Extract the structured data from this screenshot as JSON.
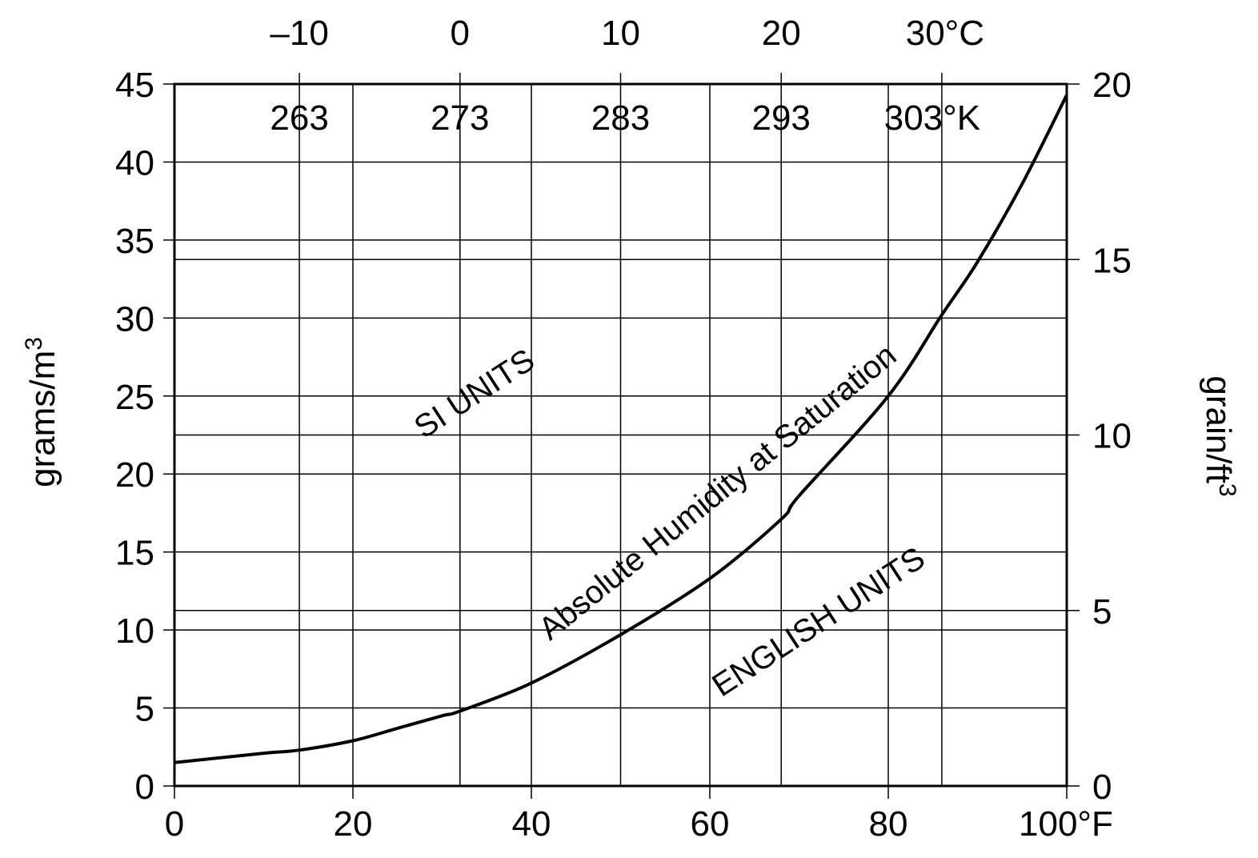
{
  "chart_data": {
    "type": "line",
    "title": "",
    "x_bottom": {
      "unit_label": "°F",
      "range": [
        0,
        100
      ],
      "ticks": [
        0,
        20,
        40,
        60,
        80,
        100
      ],
      "tick_labels": [
        "0",
        "20",
        "40",
        "60",
        "80",
        "100°F"
      ]
    },
    "x_top_celsius": {
      "ticks_f": [
        14,
        32,
        50,
        68,
        86
      ],
      "tick_labels": [
        "–10",
        "0",
        "10",
        "20",
        "30°C"
      ]
    },
    "x_top_kelvin": {
      "ticks_f": [
        14,
        32,
        50,
        68,
        86
      ],
      "tick_labels": [
        "263",
        "273",
        "283",
        "293",
        "303°K"
      ]
    },
    "y_left": {
      "label": "grams/m",
      "label_sup": "3",
      "range": [
        0,
        45
      ],
      "ticks": [
        0,
        5,
        10,
        15,
        20,
        25,
        30,
        35,
        40,
        45
      ],
      "tick_labels": [
        "0",
        "5",
        "10",
        "15",
        "20",
        "25",
        "30",
        "35",
        "40",
        "45"
      ]
    },
    "y_right": {
      "label": "grain/ft",
      "label_sup": "3",
      "range": [
        0,
        20
      ],
      "ticks": [
        0,
        5,
        10,
        15,
        20
      ],
      "tick_labels": [
        "0",
        "5",
        "10",
        "15",
        "20"
      ]
    },
    "series": [
      {
        "x": [
          0,
          10,
          14,
          20,
          25,
          30,
          32,
          40,
          50,
          60,
          68,
          70,
          80,
          86,
          90,
          95,
          100
        ],
        "y": [
          1.5,
          2.1,
          2.3,
          2.9,
          3.7,
          4.5,
          4.8,
          6.6,
          9.7,
          13.3,
          17.1,
          18.6,
          25.0,
          30.2,
          33.6,
          38.6,
          44.3
        ]
      }
    ],
    "annotations": [
      {
        "text": "Absolute Humidity at Saturation"
      },
      {
        "text": "SI UNITS"
      },
      {
        "text": "ENGLISH UNITS"
      }
    ],
    "grid": true
  }
}
